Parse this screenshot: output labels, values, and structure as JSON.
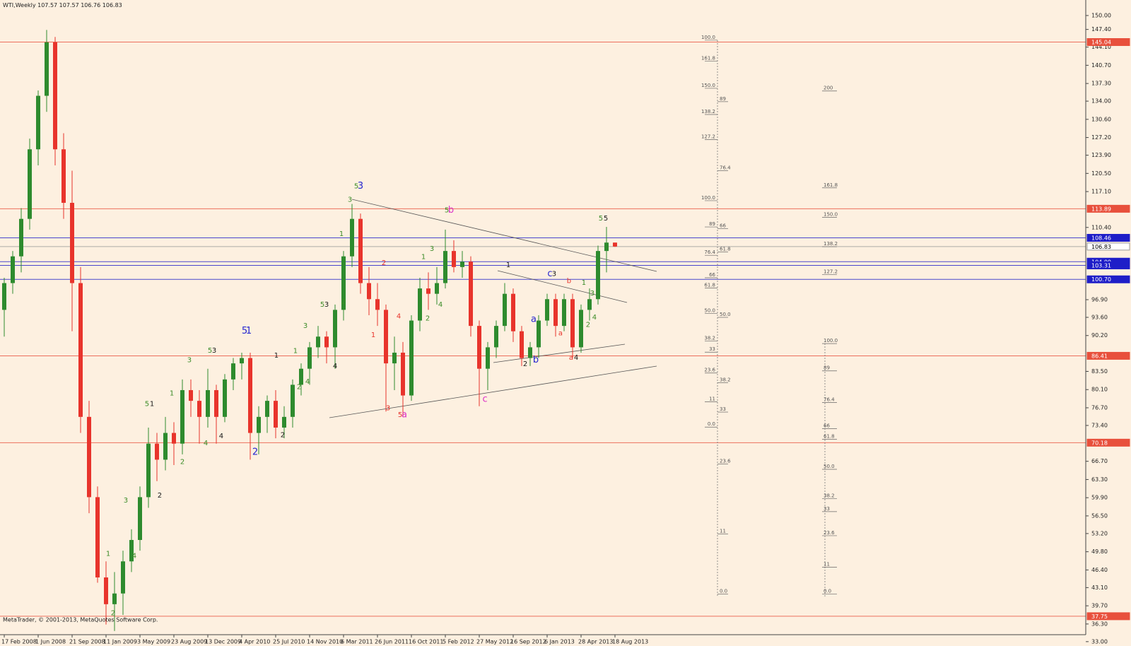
{
  "chart_data": {
    "type": "candlestick",
    "symbol": "WTI,Weekly",
    "footer": "MetaTrader, © 2001-2013, MetaQuotes Software Corp.",
    "up_color": "#2e8b2e",
    "down_color": "#e8342c",
    "ylim": [
      34.3,
      152.9
    ],
    "yticks": [
      {
        "value": 150,
        "label": "150.00"
      },
      {
        "value": 147.4,
        "label": "147.40"
      },
      {
        "value": 144.1,
        "label": "144.10"
      },
      {
        "value": 140.7,
        "label": "140.70"
      },
      {
        "value": 137.3,
        "label": "137.30"
      },
      {
        "value": 134,
        "label": "134.00"
      },
      {
        "value": 130.6,
        "label": "130.60"
      },
      {
        "value": 127.2,
        "label": "127.20"
      },
      {
        "value": 123.9,
        "label": "123.90"
      },
      {
        "value": 120.5,
        "label": "120.50"
      },
      {
        "value": 117.1,
        "label": "117.10"
      },
      {
        "value": 110.4,
        "label": "110.40"
      },
      {
        "value": 96.9,
        "label": "96.90"
      },
      {
        "value": 93.6,
        "label": "93.60"
      },
      {
        "value": 90.2,
        "label": "90.20"
      },
      {
        "value": 83.5,
        "label": "83.50"
      },
      {
        "value": 80.1,
        "label": "80.10"
      },
      {
        "value": 76.7,
        "label": "76.70"
      },
      {
        "value": 73.4,
        "label": "73.40"
      },
      {
        "value": 66.7,
        "label": "66.70"
      },
      {
        "value": 63.3,
        "label": "63.30"
      },
      {
        "value": 59.9,
        "label": "59.90"
      },
      {
        "value": 56.5,
        "label": "56.50"
      },
      {
        "value": 53.2,
        "label": "53.20"
      },
      {
        "value": 49.8,
        "label": "49.80"
      },
      {
        "value": 46.4,
        "label": "46.40"
      },
      {
        "value": 43.1,
        "label": "43.10"
      },
      {
        "value": 39.7,
        "label": "39.70"
      },
      {
        "value": 36.3,
        "label": "36.30"
      },
      {
        "value": 33,
        "label": "33.00"
      }
    ],
    "categories": [
      "17 Feb 2008",
      null,
      null,
      null,
      "1 Jun 2008",
      null,
      null,
      null,
      "21 Sep 2008",
      null,
      null,
      null,
      "11 Jan 2009",
      null,
      null,
      null,
      "3 May 2009",
      null,
      null,
      null,
      "23 Aug 2009",
      null,
      null,
      null,
      "13 Dec 2009",
      null,
      null,
      null,
      "4 Apr 2010",
      null,
      null,
      null,
      "25 Jul 2010",
      null,
      null,
      null,
      "14 Nov 2010",
      null,
      null,
      null,
      "6 Mar 2011",
      null,
      null,
      null,
      "26 Jun 2011",
      null,
      null,
      null,
      "16 Oct 2011",
      null,
      null,
      null,
      "5 Feb 2012",
      null,
      null,
      null,
      "27 May 2012",
      null,
      null,
      null,
      "16 Sep 2012",
      null,
      null,
      null,
      "6 Jan 2013",
      null,
      null,
      null,
      "28 Apr 2013",
      null,
      null,
      null,
      "18 Aug 2013"
    ],
    "open": [
      95,
      100,
      105,
      112,
      125,
      135,
      145,
      125,
      115,
      100,
      75,
      60,
      45,
      40,
      42,
      48,
      52,
      60,
      70,
      67,
      72,
      70,
      80,
      78,
      75,
      80,
      75,
      82,
      85,
      86,
      72,
      75,
      78,
      73,
      75,
      81,
      84,
      88,
      90,
      88,
      95,
      105,
      112,
      100,
      97,
      95,
      85,
      87,
      79,
      93,
      99,
      98,
      100,
      106,
      103,
      104,
      92,
      84,
      88,
      92,
      98,
      91,
      86,
      88,
      93,
      97,
      92,
      97,
      88,
      95,
      97,
      106,
      107.57
    ],
    "high": [
      101,
      106,
      114,
      127,
      136,
      147.3,
      146,
      128,
      121,
      103,
      78,
      62,
      48,
      46,
      50,
      54,
      62,
      73,
      72,
      75,
      74,
      82,
      82,
      80,
      84,
      81,
      83,
      86,
      87,
      87,
      77,
      79,
      80,
      77,
      82,
      85,
      89,
      92,
      91,
      96,
      106,
      114.8,
      113,
      103,
      100,
      96,
      90,
      89,
      94,
      101,
      102,
      103,
      110,
      108,
      106,
      105,
      93,
      89,
      93,
      100,
      99,
      92,
      89,
      94,
      98,
      98,
      98,
      98,
      96,
      99,
      107,
      110.5,
      107.57
    ],
    "low": [
      90,
      98,
      102,
      110,
      122,
      132,
      122,
      112,
      91,
      72,
      57,
      44,
      36.2,
      35,
      38,
      46,
      50,
      58,
      63,
      65,
      66,
      68,
      75,
      70,
      73,
      70,
      74,
      80,
      82,
      67,
      68,
      72,
      71,
      71,
      73,
      79,
      81,
      86,
      85,
      84,
      93,
      103,
      98,
      94,
      92,
      76,
      80,
      75,
      78,
      91,
      95,
      96,
      99,
      102,
      101,
      90,
      77,
      80,
      86,
      91,
      89,
      84.5,
      84.5,
      86,
      92,
      90,
      91,
      86,
      87,
      93,
      96,
      102,
      106.76
    ],
    "close": [
      100,
      105,
      112,
      125,
      135,
      145,
      125,
      115,
      100,
      75,
      60,
      45,
      40,
      42,
      48,
      52,
      60,
      70,
      67,
      72,
      70,
      80,
      78,
      75,
      80,
      75,
      82,
      85,
      86,
      72,
      75,
      78,
      73,
      75,
      81,
      84,
      88,
      90,
      88,
      95,
      105,
      112,
      100,
      97,
      95,
      85,
      87,
      79,
      93,
      99,
      98,
      100,
      106,
      103,
      104,
      92,
      84,
      88,
      92,
      98,
      91,
      86,
      88,
      93,
      97,
      92,
      97,
      88,
      95,
      97,
      106,
      107.57,
      106.83
    ],
    "levels": [
      {
        "value": 145.04,
        "label": "145.04",
        "color": "#e8503c"
      },
      {
        "value": 113.89,
        "label": "113.89",
        "color": "#e8503c"
      },
      {
        "value": 108.46,
        "label": "108.46",
        "color": "#1e1ec8"
      },
      {
        "value": 106.83,
        "label": "106.83",
        "color": "#9a9a9a"
      },
      {
        "value": 104,
        "label": "104.00",
        "color": "#1e1ec8"
      },
      {
        "value": 103.31,
        "label": "103.31",
        "color": "#1e1ec8"
      },
      {
        "value": 100.7,
        "label": "100.70",
        "color": "#1e1ec8"
      },
      {
        "value": 86.41,
        "label": "86.41",
        "color": "#e8503c"
      },
      {
        "value": 70.18,
        "label": "70.18",
        "color": "#e8503c"
      },
      {
        "value": 37.75,
        "label": "37.75",
        "color": "#e8503c"
      }
    ],
    "wave_colors": {
      "g": "#3c8c28",
      "k": "#1a1a1a",
      "b": "#2626d0",
      "r": "#e8342c",
      "m": "#dc32c8"
    },
    "annotations": [
      {
        "t": "1",
        "c": "g",
        "x": 12.25,
        "y": 49.4
      },
      {
        "t": "2",
        "c": "g",
        "x": 12.83,
        "y": 38.3
      },
      {
        "t": "3",
        "c": "g",
        "x": 14.33,
        "y": 59.4
      },
      {
        "t": "4",
        "c": "g",
        "x": 15.33,
        "y": 49
      },
      {
        "t": "1",
        "c": "g",
        "x": 19.75,
        "y": 79.4
      },
      {
        "t": "3",
        "c": "g",
        "x": 21.83,
        "y": 85.6
      },
      {
        "t": "5",
        "c": "g",
        "x": 16.83,
        "y": 77.4
      },
      {
        "t": "1",
        "c": "k",
        "x": 17.42,
        "y": 77.4
      },
      {
        "t": "2",
        "c": "g",
        "x": 21,
        "y": 66.6
      },
      {
        "t": "2",
        "c": "k",
        "x": 18.33,
        "y": 60.3
      },
      {
        "t": "5",
        "c": "g",
        "x": 24.25,
        "y": 87.4
      },
      {
        "t": "3",
        "c": "k",
        "x": 24.75,
        "y": 87.4
      },
      {
        "t": "4",
        "c": "g",
        "x": 23.75,
        "y": 70.1
      },
      {
        "t": "4",
        "c": "k",
        "x": 25.58,
        "y": 71.4
      },
      {
        "t": "5",
        "c": "b",
        "x": 28.33,
        "y": 91
      },
      {
        "t": "1",
        "c": "b",
        "x": 28.83,
        "y": 91
      },
      {
        "t": "2",
        "c": "b",
        "x": 29.58,
        "y": 68.4
      },
      {
        "t": "1",
        "c": "k",
        "x": 32.08,
        "y": 86.5
      },
      {
        "t": "2",
        "c": "k",
        "x": 32.83,
        "y": 71.6
      },
      {
        "t": "1",
        "c": "g",
        "x": 34.33,
        "y": 87.3
      },
      {
        "t": "2",
        "c": "g",
        "x": 34.75,
        "y": 80.6
      },
      {
        "t": "4",
        "c": "g",
        "x": 35.75,
        "y": 81.6
      },
      {
        "t": "3",
        "c": "g",
        "x": 35.5,
        "y": 92
      },
      {
        "t": "5",
        "c": "g",
        "x": 37.5,
        "y": 96
      },
      {
        "t": "3",
        "c": "k",
        "x": 38,
        "y": 96
      },
      {
        "t": "4",
        "c": "k",
        "x": 39,
        "y": 84.5
      },
      {
        "t": "2",
        "c": "g",
        "x": 40,
        "y": 96.5
      },
      {
        "t": "4",
        "c": "g",
        "x": 41,
        "y": 105.4
      },
      {
        "t": "3",
        "c": "g",
        "x": 40.75,
        "y": 115.6
      },
      {
        "t": "1",
        "c": "g",
        "x": 39.75,
        "y": 109.2
      },
      {
        "t": "5",
        "c": "g",
        "x": 41.5,
        "y": 118.1
      },
      {
        "t": "3",
        "c": "b",
        "x": 42,
        "y": 118.1
      },
      {
        "t": "2",
        "c": "r",
        "x": 44.75,
        "y": 103.8
      },
      {
        "t": "1",
        "c": "r",
        "x": 43.5,
        "y": 90.3
      },
      {
        "t": "4",
        "c": "r",
        "x": 46.5,
        "y": 93.8
      },
      {
        "t": "3",
        "c": "r",
        "x": 45.25,
        "y": 76.6
      },
      {
        "t": "5",
        "c": "r",
        "x": 46.67,
        "y": 75.4
      },
      {
        "t": "a",
        "c": "m",
        "x": 47.17,
        "y": 75.4
      },
      {
        "t": "1",
        "c": "g",
        "x": 49.42,
        "y": 104.9
      },
      {
        "t": "3",
        "c": "g",
        "x": 50.42,
        "y": 106.4
      },
      {
        "t": "2",
        "c": "g",
        "x": 49.92,
        "y": 93.4
      },
      {
        "t": "4",
        "c": "g",
        "x": 51.42,
        "y": 96
      },
      {
        "t": "5",
        "c": "g",
        "x": 52.17,
        "y": 113.6
      },
      {
        "t": "b",
        "c": "m",
        "x": 52.67,
        "y": 113.6
      },
      {
        "t": "1",
        "c": "k",
        "x": 59.42,
        "y": 103.4
      },
      {
        "t": "c",
        "c": "m",
        "x": 56.67,
        "y": 78.3
      },
      {
        "t": "a",
        "c": "b",
        "x": 62.42,
        "y": 93.2
      },
      {
        "t": "2",
        "c": "k",
        "x": 61.42,
        "y": 84.9
      },
      {
        "t": "b",
        "c": "b",
        "x": 62.67,
        "y": 85.6
      },
      {
        "t": "c",
        "c": "b",
        "x": 64.33,
        "y": 101.7
      },
      {
        "t": "3",
        "c": "k",
        "x": 64.83,
        "y": 101.7
      },
      {
        "t": "b",
        "c": "r",
        "x": 66.58,
        "y": 100.4
      },
      {
        "t": "a",
        "c": "r",
        "x": 65.58,
        "y": 90.6
      },
      {
        "t": "1",
        "c": "g",
        "x": 68.33,
        "y": 100.1
      },
      {
        "t": "3",
        "c": "g",
        "x": 69.33,
        "y": 98.1
      },
      {
        "t": "2",
        "c": "g",
        "x": 68.83,
        "y": 92.2
      },
      {
        "t": "4",
        "c": "g",
        "x": 69.58,
        "y": 93.6
      },
      {
        "t": "a",
        "c": "r",
        "x": 66.83,
        "y": 86.1
      },
      {
        "t": "4",
        "c": "k",
        "x": 67.42,
        "y": 86.1
      },
      {
        "t": "5",
        "c": "g",
        "x": 70.33,
        "y": 112.1
      },
      {
        "t": "5",
        "c": "k",
        "x": 70.92,
        "y": 112.1
      }
    ],
    "fibonacci": [
      {
        "levels": [
          {
            "label": "100.0",
            "price": 145.4
          },
          {
            "label": "161.8",
            "price": 141.5
          },
          {
            "label": "150.0",
            "price": 136.4
          },
          {
            "label": "138.2",
            "price": 131.5
          },
          {
            "label": "127.2",
            "price": 126.8
          },
          {
            "label": "100.0",
            "price": 115.4
          },
          {
            "label": "89",
            "price": 110.5
          },
          {
            "label": "76.4",
            "price": 105.2
          },
          {
            "label": "66",
            "price": 101
          },
          {
            "label": "61.8",
            "price": 99.1
          },
          {
            "label": "50.0",
            "price": 94.3
          },
          {
            "label": "38.2",
            "price": 89.2
          },
          {
            "label": "33",
            "price": 87.1
          },
          {
            "label": "23.6",
            "price": 83.2
          },
          {
            "label": "11",
            "price": 77.8
          },
          {
            "label": "0.0",
            "price": 73.1
          }
        ]
      },
      {
        "levels": [
          {
            "label": "89",
            "price": 133.9
          },
          {
            "label": "76.4",
            "price": 121
          },
          {
            "label": "66",
            "price": 110.2
          },
          {
            "label": "61.8",
            "price": 105.8
          },
          {
            "label": "50.0",
            "price": 93.6
          },
          {
            "label": "38.2",
            "price": 81.4
          },
          {
            "label": "33",
            "price": 75.9
          },
          {
            "label": "23.6",
            "price": 66.2
          },
          {
            "label": "11",
            "price": 53.1
          },
          {
            "label": "0.0",
            "price": 41.9
          }
        ]
      },
      {
        "levels": [
          {
            "label": "200",
            "price": 135.9
          },
          {
            "label": "161.8",
            "price": 117.8
          },
          {
            "label": "150.0",
            "price": 112.3
          },
          {
            "label": "138.2",
            "price": 106.8
          },
          {
            "label": "127.2",
            "price": 101.6
          },
          {
            "label": "100.0",
            "price": 88.7
          },
          {
            "label": "89",
            "price": 83.6
          },
          {
            "label": "76.4",
            "price": 77.7
          },
          {
            "label": "66",
            "price": 72.8
          },
          {
            "label": "61.8",
            "price": 70.8
          },
          {
            "label": "50.0",
            "price": 65.2
          },
          {
            "label": "38.2",
            "price": 59.7
          },
          {
            "label": "33",
            "price": 57.3
          },
          {
            "label": "23.6",
            "price": 52.8
          },
          {
            "label": "11",
            "price": 46.9
          },
          {
            "label": "0.0",
            "price": 41.9
          }
        ]
      }
    ]
  }
}
